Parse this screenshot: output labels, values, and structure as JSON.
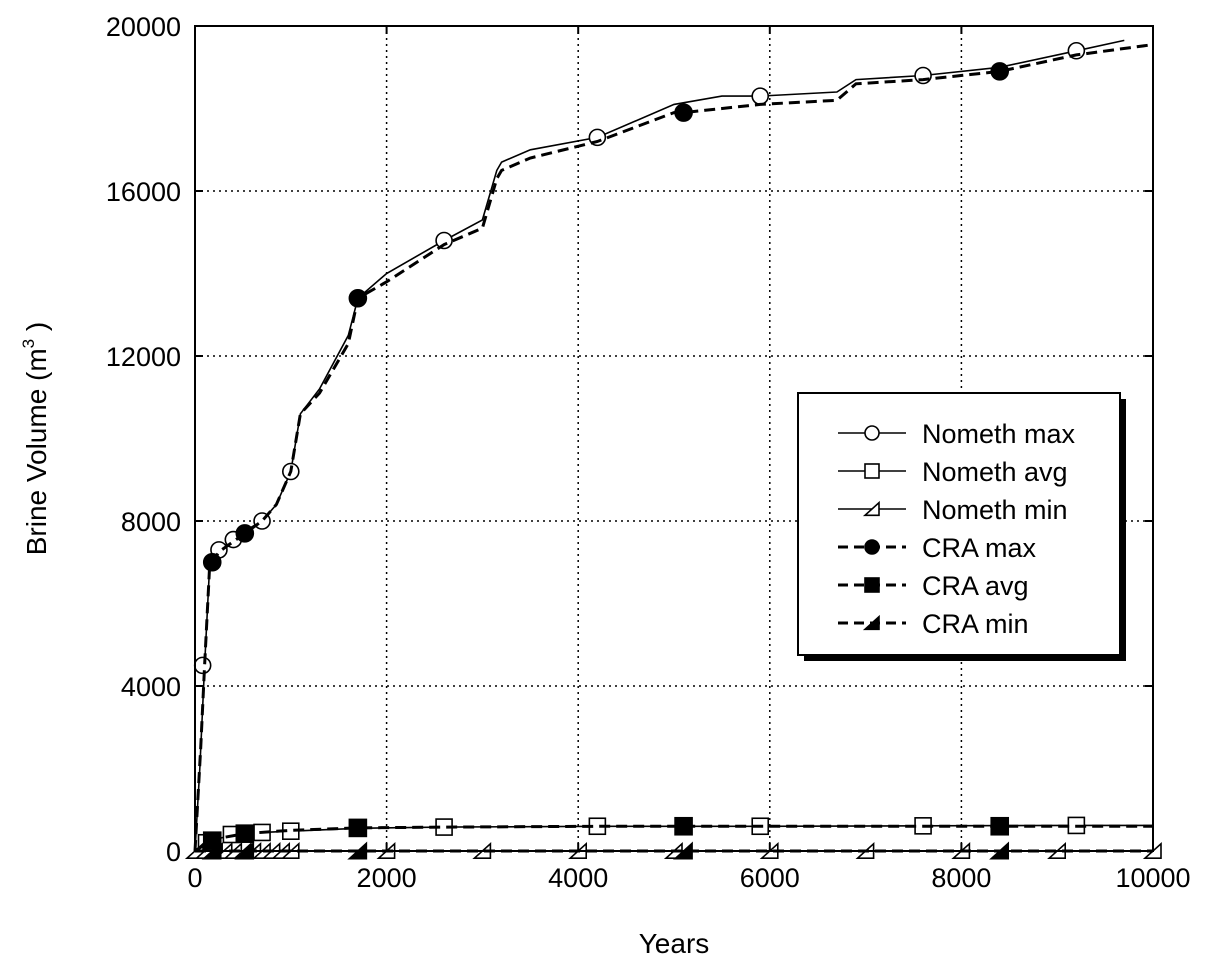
{
  "chart_data": {
    "type": "line",
    "xlabel": "Years",
    "ylabel_main": "Brine Volume (m",
    "ylabel_sup": "3",
    "ylabel_end": " )",
    "xlim": [
      0,
      10000
    ],
    "ylim": [
      0,
      20000
    ],
    "xticks": [
      0,
      2000,
      4000,
      6000,
      8000,
      10000
    ],
    "yticks": [
      0,
      4000,
      8000,
      12000,
      16000,
      20000
    ],
    "xtick_labels": [
      "0",
      "2000",
      "4000",
      "6000",
      "8000",
      "10000"
    ],
    "ytick_labels": [
      "0",
      "4000",
      "8000",
      "12000",
      "16000",
      "20000"
    ],
    "grid": true,
    "legend_position": "right",
    "series": [
      {
        "name": "Nometh max",
        "style": "solid",
        "marker": "circle-open",
        "x": [
          0,
          50,
          100,
          150,
          180,
          250,
          400,
          550,
          700,
          850,
          1000,
          1100,
          1300,
          1600,
          1700,
          2000,
          2600,
          3000,
          3150,
          3200,
          3500,
          4200,
          5000,
          5500,
          5900,
          6700,
          6900,
          7600,
          8400,
          9200,
          9700
        ],
        "y": [
          0,
          2000,
          4500,
          6800,
          7000,
          7300,
          7550,
          7800,
          8000,
          8400,
          9200,
          10600,
          11200,
          12500,
          13400,
          14000,
          14800,
          15300,
          16500,
          16700,
          17000,
          17300,
          18100,
          18300,
          18300,
          18400,
          18700,
          18800,
          19000,
          19400,
          19650
        ],
        "marker_x": [
          80,
          250,
          400,
          700,
          1000,
          2600,
          4200,
          5900,
          7600,
          9200
        ],
        "marker_y": [
          4500,
          7300,
          7550,
          8000,
          9200,
          14800,
          17300,
          18300,
          18800,
          19400
        ]
      },
      {
        "name": "Nometh avg",
        "style": "solid",
        "marker": "square-open",
        "x": [
          0,
          100,
          250,
          400,
          700,
          1000,
          1700,
          2600,
          4200,
          5900,
          7600,
          9200,
          10000
        ],
        "y": [
          0,
          200,
          300,
          400,
          450,
          480,
          550,
          580,
          600,
          600,
          610,
          620,
          620
        ],
        "marker_x": [
          120,
          380,
          700,
          1000,
          2600,
          4200,
          5900,
          7600,
          9200
        ],
        "marker_y": [
          200,
          400,
          450,
          480,
          580,
          600,
          600,
          610,
          620
        ]
      },
      {
        "name": "Nometh min",
        "style": "solid",
        "marker": "triangle-open",
        "x": [
          0,
          10000
        ],
        "y": [
          0,
          0
        ],
        "marker_x": [
          0,
          100,
          200,
          300,
          400,
          500,
          600,
          700,
          800,
          900,
          1000,
          2000,
          3000,
          4000,
          5000,
          6000,
          7000,
          8000,
          9000,
          10000
        ],
        "marker_y": [
          0,
          0,
          0,
          0,
          0,
          0,
          0,
          0,
          0,
          0,
          0,
          0,
          0,
          0,
          0,
          0,
          0,
          0,
          0,
          0
        ]
      },
      {
        "name": "CRA max",
        "style": "dashed",
        "marker": "circle-filled",
        "x": [
          0,
          60,
          100,
          150,
          180,
          250,
          400,
          520,
          700,
          850,
          1000,
          1100,
          1300,
          1600,
          1700,
          2000,
          2600,
          3000,
          3150,
          3200,
          3500,
          4200,
          5000,
          5100,
          5900,
          6700,
          6900,
          7600,
          8400,
          9200,
          10000
        ],
        "y": [
          0,
          2500,
          4500,
          6800,
          7000,
          7250,
          7500,
          7700,
          8000,
          8400,
          9200,
          10600,
          11100,
          12300,
          13400,
          13800,
          14700,
          15100,
          16300,
          16500,
          16800,
          17200,
          17900,
          17900,
          18100,
          18200,
          18600,
          18700,
          18900,
          19300,
          19550
        ],
        "marker_x": [
          180,
          520,
          1700,
          5100,
          8400
        ],
        "marker_y": [
          7000,
          7700,
          13400,
          17900,
          18900
        ]
      },
      {
        "name": "CRA avg",
        "style": "dashed",
        "marker": "square-filled",
        "x": [
          0,
          100,
          180,
          300,
          520,
          800,
          1000,
          1700,
          2600,
          4200,
          5100,
          5900,
          7600,
          8400,
          10000
        ],
        "y": [
          0,
          150,
          250,
          330,
          420,
          470,
          500,
          560,
          580,
          600,
          600,
          600,
          600,
          600,
          600
        ],
        "marker_x": [
          180,
          520,
          1700,
          5100,
          8400
        ],
        "marker_y": [
          250,
          420,
          560,
          600,
          600
        ]
      },
      {
        "name": "CRA min",
        "style": "dashed",
        "marker": "triangle-filled",
        "x": [
          0,
          10000
        ],
        "y": [
          0,
          0
        ],
        "marker_x": [
          180,
          520,
          1700,
          5100,
          8400
        ],
        "marker_y": [
          0,
          0,
          0,
          0,
          0
        ]
      }
    ]
  }
}
